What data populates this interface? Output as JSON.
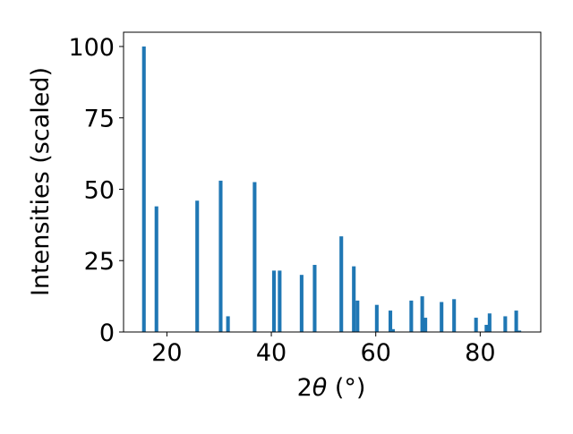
{
  "chart_data": {
    "type": "bar",
    "title": "",
    "xlabel_prefix": "2",
    "xlabel_theta": "θ",
    "xlabel_suffix": " (°)",
    "ylabel": "Intensities (scaled)",
    "xlim": [
      11.7,
      91.6
    ],
    "ylim": [
      0,
      105
    ],
    "xticks": [
      20,
      40,
      60,
      80
    ],
    "yticks": [
      0,
      25,
      50,
      75,
      100
    ],
    "bar_width": 0.7,
    "bar_color": "#1f77b4",
    "grid": false,
    "series": [
      {
        "x": [
          15.6,
          18.0,
          25.8,
          30.3,
          31.7,
          36.8,
          40.5,
          41.6,
          45.8,
          48.3,
          53.4,
          55.8,
          56.5,
          60.2,
          62.8,
          63.3,
          66.8,
          68.9,
          69.5,
          72.6,
          75.0,
          79.2,
          81.2,
          81.8,
          84.8,
          86.9,
          87.5
        ],
        "values": [
          100,
          44,
          46,
          53,
          5.5,
          52.5,
          21.5,
          21.5,
          20,
          23.5,
          33.5,
          23,
          11,
          9.5,
          7.5,
          1,
          11,
          12.5,
          5,
          10.5,
          11.5,
          5,
          2.5,
          6.5,
          5.5,
          7.5,
          0.5
        ]
      }
    ]
  }
}
